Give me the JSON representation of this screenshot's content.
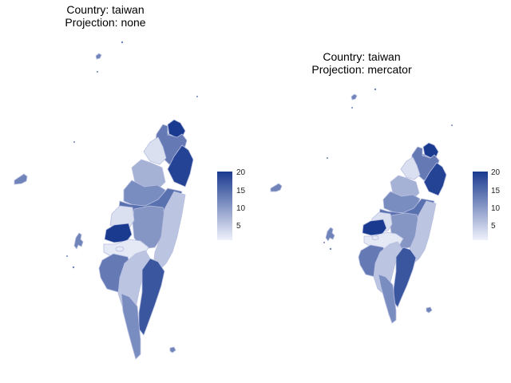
{
  "panels": [
    {
      "id": "left",
      "title_line1": "Country: taiwan",
      "title_line2": "Projection: none"
    },
    {
      "id": "right",
      "title_line1": "Country: taiwan",
      "title_line2": "Projection: mercator"
    }
  ],
  "colorbar": {
    "ticks": [
      "20",
      "15",
      "10",
      "5"
    ],
    "min": 1,
    "max": 21,
    "color_low": "#f0f2fb",
    "color_high": "#1a3a8f"
  },
  "region_values": {
    "keelung": 21,
    "newtaipei": 14,
    "taipei": 10,
    "yilan": 20,
    "taoyuan": 3,
    "hsinchu": 8,
    "miaoli": 12,
    "taichung": 15,
    "nantou": 11,
    "hualien": 6,
    "changhua": 3,
    "yunlin": 21,
    "chiayi": 2,
    "tainan": 14,
    "kaohsiung": 6,
    "taitung": 18,
    "pingtung": 12,
    "islands": 13
  }
}
